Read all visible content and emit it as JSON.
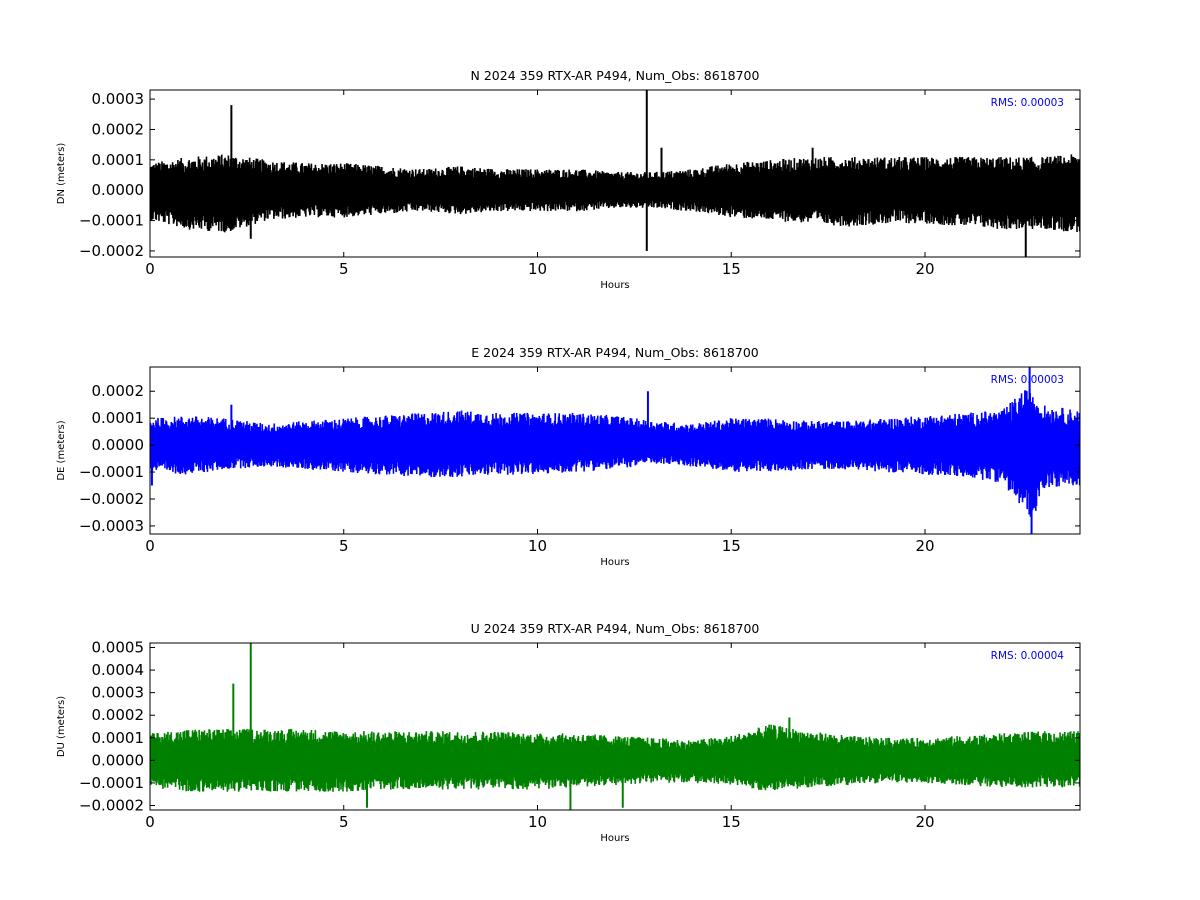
{
  "figure": {
    "background": "#ffffff"
  },
  "chart_data": [
    {
      "type": "line",
      "title": "N 2024 359 RTX-AR  P494, Num_Obs: 8618700",
      "xlabel": "Hours",
      "ylabel": "DN (meters)",
      "rms_label": "RMS:  0.00003",
      "rms_color": "#0000ff",
      "line_color": "#000000",
      "xlim": [
        0,
        24
      ],
      "ylim": [
        -0.00022,
        0.00033
      ],
      "xticks": [
        0,
        5,
        10,
        15,
        20
      ],
      "xtick_labels": [
        "0",
        "5",
        "10",
        "15",
        "20"
      ],
      "yticks": [
        -0.0002,
        -0.0001,
        0.0,
        0.0001,
        0.0002,
        0.0003
      ],
      "ytick_labels": [
        "−0.0002",
        "−0.0001",
        "0.0000",
        "0.0001",
        "0.0002",
        "0.0003"
      ],
      "series": [
        {
          "x": [
            0,
            1,
            2,
            3,
            4,
            5,
            6,
            7,
            8,
            9,
            10,
            11,
            12,
            13,
            14,
            15,
            16,
            17,
            18,
            19,
            20,
            21,
            22,
            23,
            24
          ],
          "upper": [
            9e-05,
            0.00011,
            0.00012,
            0.0001,
            9e-05,
            9e-05,
            8e-05,
            7e-05,
            8e-05,
            7e-05,
            7e-05,
            7e-05,
            6e-05,
            6e-05,
            7e-05,
            9e-05,
            0.0001,
            0.00011,
            0.00011,
            0.00011,
            0.00011,
            0.00011,
            0.00011,
            0.00011,
            0.00012
          ],
          "lower": [
            -0.0001,
            -0.00013,
            -0.00014,
            -0.0001,
            -9e-05,
            -9e-05,
            -8e-05,
            -7e-05,
            -8e-05,
            -7e-05,
            -7e-05,
            -7e-05,
            -6e-05,
            -6e-05,
            -7e-05,
            -9e-05,
            -0.0001,
            -0.00011,
            -0.00012,
            -0.00011,
            -0.00011,
            -0.00012,
            -0.00013,
            -0.00013,
            -0.00014
          ]
        }
      ],
      "spikes": [
        {
          "x": 2.1,
          "y": 0.00028
        },
        {
          "x": 2.6,
          "y": -0.00016
        },
        {
          "x": 12.82,
          "y": 0.00033
        },
        {
          "x": 12.82,
          "y": -0.0002
        },
        {
          "x": 13.2,
          "y": 0.00014
        },
        {
          "x": 17.1,
          "y": 0.00014
        },
        {
          "x": 22.6,
          "y": -0.00022
        }
      ]
    },
    {
      "type": "line",
      "title": "E 2024 359 RTX-AR  P494, Num_Obs: 8618700",
      "xlabel": "Hours",
      "ylabel": "DE (meters)",
      "rms_label": "RMS:  0.00003",
      "rms_color": "#0000ff",
      "line_color": "#0000ff",
      "xlim": [
        0,
        24
      ],
      "ylim": [
        -0.00033,
        0.00029
      ],
      "xticks": [
        0,
        5,
        10,
        15,
        20
      ],
      "xtick_labels": [
        "0",
        "5",
        "10",
        "15",
        "20"
      ],
      "yticks": [
        -0.0003,
        -0.0002,
        -0.0001,
        0.0,
        0.0001,
        0.0002
      ],
      "ytick_labels": [
        "−0.0003",
        "−0.0002",
        "−0.0001",
        "0.0000",
        "0.0001",
        "0.0002"
      ],
      "series": [
        {
          "x": [
            0,
            1,
            2,
            3,
            4,
            5,
            6,
            7,
            8,
            9,
            10,
            11,
            12,
            13,
            14,
            15,
            16,
            17,
            18,
            19,
            20,
            21,
            22,
            22.5,
            22.8,
            23,
            24
          ],
          "upper": [
            0.0001,
            0.00011,
            0.0001,
            8e-05,
            9e-05,
            0.0001,
            0.00011,
            0.00012,
            0.00013,
            0.00012,
            0.00012,
            0.00012,
            0.00011,
            9e-05,
            8e-05,
            0.0001,
            0.0001,
            9e-05,
            9e-05,
            0.0001,
            0.00011,
            0.00012,
            0.00013,
            0.0002,
            0.00022,
            0.00015,
            0.00013
          ],
          "lower": [
            -0.0001,
            -0.00011,
            -9e-05,
            -8e-05,
            -9e-05,
            -0.0001,
            -0.00011,
            -0.00012,
            -0.00012,
            -0.00011,
            -0.00011,
            -0.0001,
            -9e-05,
            -7e-05,
            -8e-05,
            -0.0001,
            -0.0001,
            -9e-05,
            -9e-05,
            -0.0001,
            -0.00011,
            -0.00012,
            -0.00014,
            -0.00024,
            -0.00028,
            -0.00016,
            -0.00015
          ]
        }
      ],
      "spikes": [
        {
          "x": 0.05,
          "y": -0.00015
        },
        {
          "x": 2.1,
          "y": 0.00015
        },
        {
          "x": 12.85,
          "y": 0.0002
        },
        {
          "x": 22.7,
          "y": 0.00029
        },
        {
          "x": 22.75,
          "y": -0.00033
        }
      ]
    },
    {
      "type": "line",
      "title": "U 2024 359 RTX-AR  P494, Num_Obs: 8618700",
      "xlabel": "Hours",
      "ylabel": "DU (meters)",
      "rms_label": "RMS:  0.00004",
      "rms_color": "#0000ff",
      "line_color": "#008000",
      "xlim": [
        0,
        24
      ],
      "ylim": [
        -0.00022,
        0.00052
      ],
      "xticks": [
        0,
        5,
        10,
        15,
        20
      ],
      "xtick_labels": [
        "0",
        "5",
        "10",
        "15",
        "20"
      ],
      "yticks": [
        -0.0002,
        -0.0001,
        0.0,
        0.0001,
        0.0002,
        0.0003,
        0.0004,
        0.0005
      ],
      "ytick_labels": [
        "−0.0002",
        "−0.0001",
        "0.0000",
        "0.0001",
        "0.0002",
        "0.0003",
        "0.0004",
        "0.0005"
      ],
      "series": [
        {
          "x": [
            0,
            1,
            2,
            3,
            4,
            5,
            6,
            7,
            8,
            9,
            10,
            11,
            12,
            13,
            14,
            15,
            16,
            17,
            18,
            19,
            20,
            21,
            22,
            23,
            24
          ],
          "upper": [
            0.00012,
            0.00014,
            0.00014,
            0.00014,
            0.00014,
            0.00013,
            0.00013,
            0.00013,
            0.00013,
            0.00013,
            0.00012,
            0.00012,
            0.00011,
            0.0001,
            9e-05,
            0.00011,
            0.00016,
            0.00013,
            0.00011,
            0.0001,
            0.0001,
            0.00011,
            0.00012,
            0.00013,
            0.00013
          ],
          "lower": [
            -0.00012,
            -0.00014,
            -0.00014,
            -0.00014,
            -0.00014,
            -0.00014,
            -0.00013,
            -0.00013,
            -0.00013,
            -0.00013,
            -0.00013,
            -0.00012,
            -0.00011,
            -0.0001,
            -0.0001,
            -0.00011,
            -0.00014,
            -0.00012,
            -0.00011,
            -0.0001,
            -0.0001,
            -0.00011,
            -0.00012,
            -0.00012,
            -0.00012
          ]
        }
      ],
      "spikes": [
        {
          "x": 2.15,
          "y": 0.00034
        },
        {
          "x": 2.6,
          "y": 0.00052
        },
        {
          "x": 5.6,
          "y": -0.00021
        },
        {
          "x": 10.85,
          "y": -0.00022
        },
        {
          "x": 12.2,
          "y": -0.00021
        },
        {
          "x": 16.5,
          "y": 0.00019
        }
      ]
    }
  ]
}
